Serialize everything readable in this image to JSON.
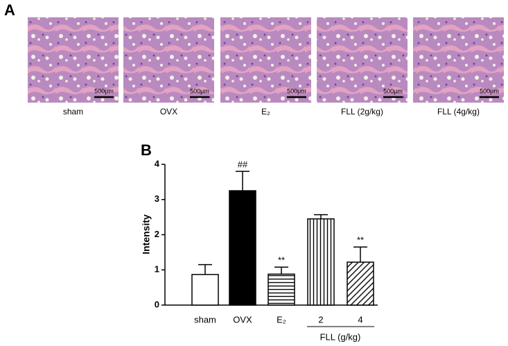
{
  "panel_a": {
    "label": "A",
    "images": [
      {
        "label": "sham",
        "scale": "500μm"
      },
      {
        "label": "OVX",
        "scale": "500μm"
      },
      {
        "label": "E₂",
        "scale": "500μm"
      },
      {
        "label": "FLL (2g/kg)",
        "scale": "500μm"
      },
      {
        "label": "FLL (4g/kg)",
        "scale": "500μm"
      }
    ]
  },
  "chart_data": {
    "type": "bar",
    "panel_label": "B",
    "ylabel": "Intensity",
    "categories": [
      "sham",
      "OVX",
      "E₂",
      "2",
      "4"
    ],
    "values": [
      0.87,
      3.25,
      0.88,
      2.45,
      1.22
    ],
    "errors": [
      0.28,
      0.55,
      0.2,
      0.12,
      0.43
    ],
    "annotations": [
      null,
      "##",
      "**",
      null,
      "**"
    ],
    "patterns": [
      "none",
      "solid",
      "horizontal",
      "vertical",
      "diagonal"
    ],
    "group_label": "FLL (g/kg)",
    "color": "#000000",
    "ylim": [
      0,
      4
    ],
    "yticks": [
      0,
      1,
      2,
      3,
      4
    ]
  }
}
